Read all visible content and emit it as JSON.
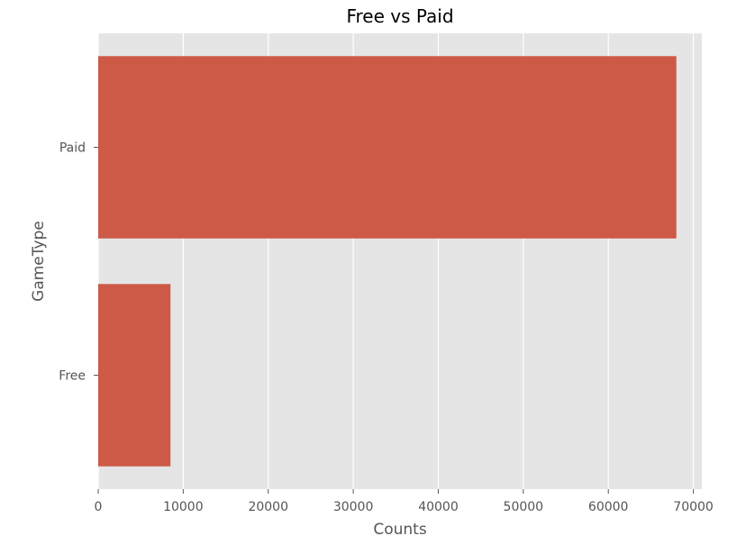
{
  "chart_data": {
    "type": "bar",
    "orientation": "horizontal",
    "title": "Free vs Paid",
    "xlabel": "Counts",
    "ylabel": "GameType",
    "categories": [
      "Paid",
      "Free"
    ],
    "values": [
      68000,
      8500
    ],
    "xlim": [
      0,
      71000
    ],
    "xticks": [
      0,
      10000,
      20000,
      30000,
      40000,
      50000,
      60000,
      70000
    ],
    "grid": true,
    "bar_color": "#CC5A47",
    "plot_background": "#E5E5E5",
    "grid_color": "#FFFFFF"
  }
}
